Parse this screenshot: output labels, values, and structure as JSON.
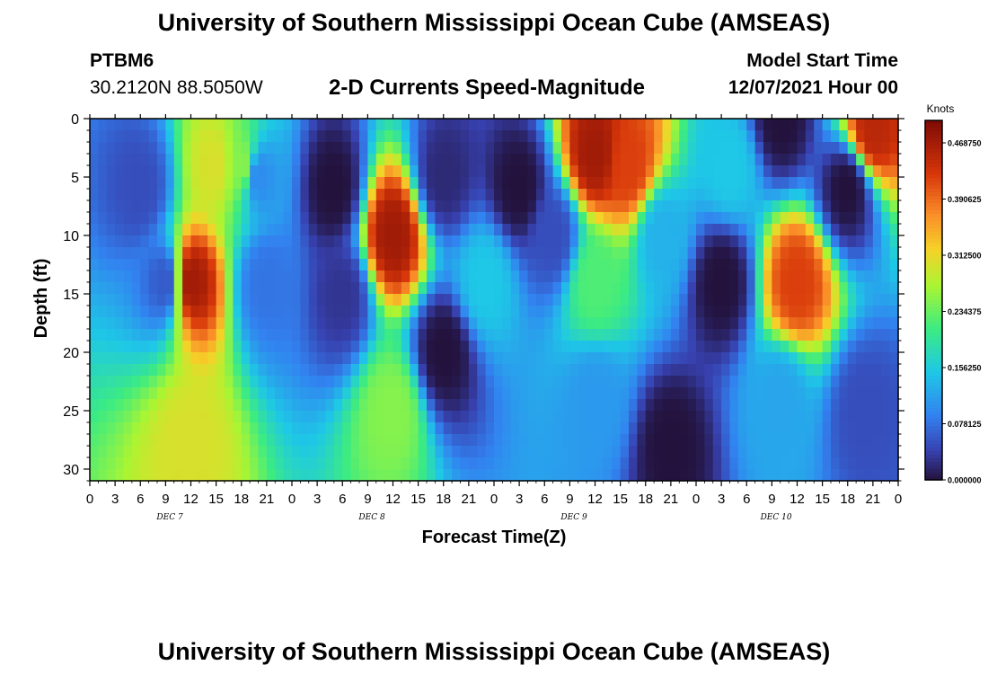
{
  "page": {
    "title": "University of Southern Mississippi Ocean Cube (AMSEAS)",
    "bottom_title": "University of Southern Mississippi Ocean Cube (AMSEAS)"
  },
  "header": {
    "station": "PTBM6",
    "coords": "30.2120N  88.5050W",
    "plot_title": "2-D Currents Speed-Magnitude",
    "start_label": "Model Start Time",
    "start_value": "12/07/2021 Hour 00"
  },
  "chart_data": {
    "type": "heatmap",
    "title": "2-D Currents Speed-Magnitude",
    "xlabel": "Forecast Time(Z)",
    "ylabel": "Depth (ft)",
    "x_range_hours": [
      0,
      96
    ],
    "y_range_ft": [
      0,
      31
    ],
    "y_ticks": [
      "0",
      "5",
      "10",
      "15",
      "20",
      "25",
      "30"
    ],
    "x_tick_labels": [
      "0",
      "3",
      "6",
      "9",
      "12",
      "15",
      "18",
      "21",
      "0",
      "3",
      "6",
      "9",
      "12",
      "15",
      "18",
      "21",
      "0",
      "3",
      "6",
      "9",
      "12",
      "15",
      "18",
      "21",
      "0",
      "3",
      "6",
      "9",
      "12",
      "15",
      "18",
      "21",
      "0"
    ],
    "day_labels": [
      "DEC 7",
      "DEC 8",
      "DEC 9",
      "DEC 10"
    ],
    "colorbar": {
      "title": "Knots",
      "ticks": [
        "0.000000",
        "0.078125",
        "0.156250",
        "0.234375",
        "0.312500",
        "0.390625",
        "0.468750"
      ],
      "range": [
        0,
        0.5
      ]
    },
    "grid": false,
    "features": [
      {
        "t": 12,
        "d": 14,
        "v": 0.47
      },
      {
        "t": 12,
        "d": 28,
        "v": 0.3
      },
      {
        "t": 9,
        "d": 14,
        "v": 0.06
      },
      {
        "t": 6,
        "d": 6,
        "v": 0.05
      },
      {
        "t": 15,
        "d": 4,
        "v": 0.3
      },
      {
        "t": 18,
        "d": 4,
        "v": 0.25
      },
      {
        "t": 20,
        "d": 5,
        "v": 0.1
      },
      {
        "t": 21,
        "d": 14,
        "v": 0.08
      },
      {
        "t": 30,
        "d": 15,
        "v": 0.03
      },
      {
        "t": 29,
        "d": 6,
        "v": 0.0
      },
      {
        "t": 36,
        "d": 10,
        "v": 0.47
      },
      {
        "t": 36,
        "d": 25,
        "v": 0.25
      },
      {
        "t": 42,
        "d": 20,
        "v": 0.0
      },
      {
        "t": 42,
        "d": 5,
        "v": 0.02
      },
      {
        "t": 47,
        "d": 14,
        "v": 0.15
      },
      {
        "t": 51,
        "d": 6,
        "v": 0.0
      },
      {
        "t": 55,
        "d": 10,
        "v": 0.05
      },
      {
        "t": 60,
        "d": 3,
        "v": 0.47
      },
      {
        "t": 60,
        "d": 14,
        "v": 0.22
      },
      {
        "t": 60,
        "d": 24,
        "v": 0.11
      },
      {
        "t": 64,
        "d": 4,
        "v": 0.42
      },
      {
        "t": 68,
        "d": 10,
        "v": 0.13
      },
      {
        "t": 69,
        "d": 28,
        "v": 0.0
      },
      {
        "t": 75,
        "d": 14,
        "v": 0.0
      },
      {
        "t": 76,
        "d": 4,
        "v": 0.15
      },
      {
        "t": 82,
        "d": 0,
        "v": 0.0
      },
      {
        "t": 84,
        "d": 14,
        "v": 0.42
      },
      {
        "t": 82,
        "d": 24,
        "v": 0.12
      },
      {
        "t": 90,
        "d": 6,
        "v": 0.0
      },
      {
        "t": 93,
        "d": 1,
        "v": 0.45
      },
      {
        "t": 92,
        "d": 25,
        "v": 0.05
      }
    ]
  }
}
